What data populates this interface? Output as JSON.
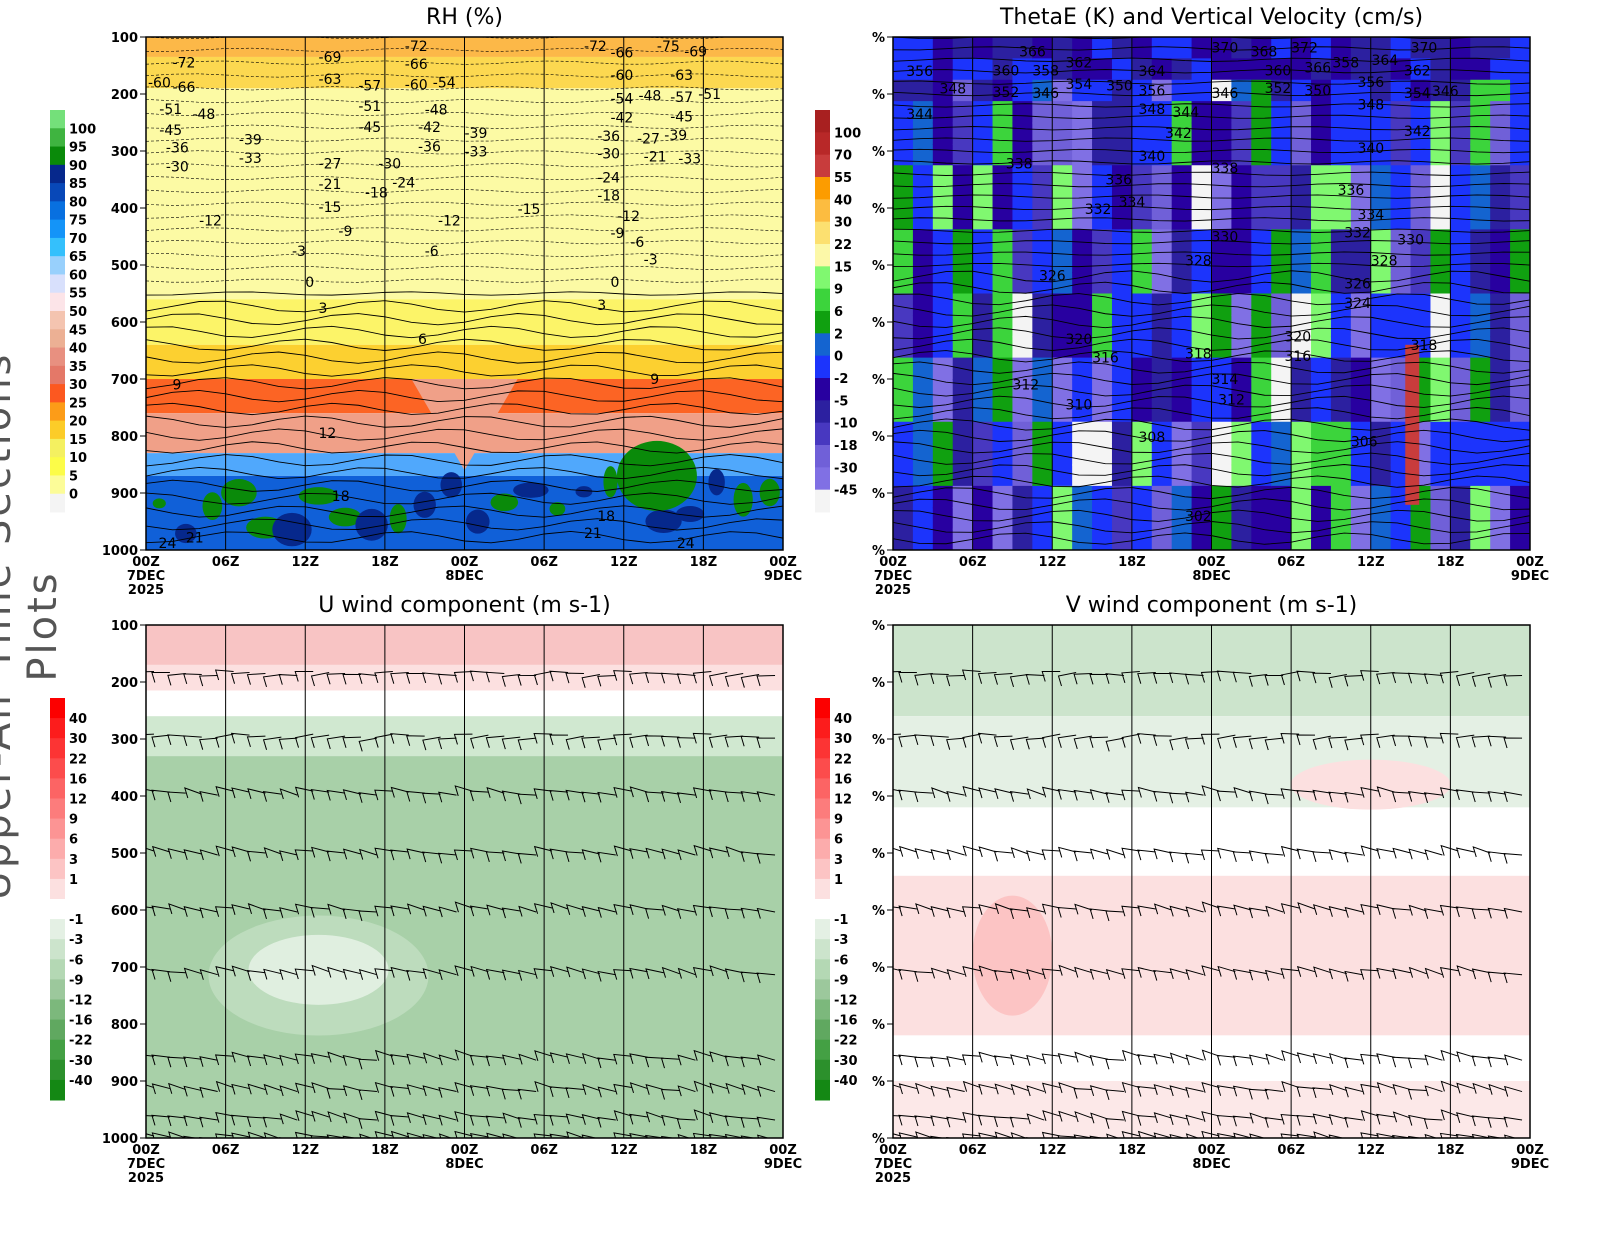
{
  "side_title": "Upper-Air Time Sections Plots",
  "x_ticks": [
    {
      "hour": 0,
      "label": "00Z",
      "date": "7DEC",
      "year": "2025"
    },
    {
      "hour": 6,
      "label": "06Z"
    },
    {
      "hour": 12,
      "label": "12Z"
    },
    {
      "hour": 18,
      "label": "18Z"
    },
    {
      "hour": 24,
      "label": "00Z",
      "date": "8DEC"
    },
    {
      "hour": 30,
      "label": "06Z"
    },
    {
      "hour": 36,
      "label": "12Z"
    },
    {
      "hour": 42,
      "label": "18Z"
    },
    {
      "hour": 48,
      "label": "00Z",
      "date": "9DEC"
    }
  ],
  "chart_data": [
    {
      "id": "rh",
      "type": "heatmap",
      "title": "RH (%)",
      "xlim": [
        0,
        48
      ],
      "ylim": [
        100,
        1000
      ],
      "ylabel_ticks": [
        "100",
        "200",
        "300",
        "400",
        "500",
        "600",
        "700",
        "800",
        "900",
        "1000"
      ],
      "colorbar": {
        "labels": [
          "100",
          "95",
          "90",
          "85",
          "80",
          "75",
          "70",
          "65",
          "60",
          "55",
          "50",
          "45",
          "40",
          "35",
          "30",
          "25",
          "20",
          "15",
          "10",
          "5",
          "0"
        ],
        "colors": [
          "#74e07a",
          "#3fb440",
          "#0a8a0a",
          "#06288c",
          "#0848b8",
          "#0870e0",
          "#1494f8",
          "#34c0fc",
          "#98d0fc",
          "#d8e0fc",
          "#fce4e8",
          "#f4c4b0",
          "#ecb094",
          "#e89080",
          "#e47868",
          "#fc5820",
          "#fc9c18",
          "#fccc28",
          "#f4f060",
          "#fcfc48",
          "#fcfc98",
          "#f4f4f4"
        ]
      },
      "bands": [
        [
          100,
          135,
          "#fcb848"
        ],
        [
          135,
          190,
          "#fcd850"
        ],
        [
          190,
          560,
          "#fcfaa4"
        ],
        [
          560,
          640,
          "#fcf468"
        ],
        [
          640,
          700,
          "#fcd030"
        ],
        [
          700,
          760,
          "#fc6424"
        ],
        [
          760,
          830,
          "#f0a088"
        ],
        [
          830,
          870,
          "#50a8fc"
        ],
        [
          870,
          1000,
          "#1060d8"
        ]
      ],
      "contour_labels": [
        [
          2,
          145,
          "-72"
        ],
        [
          2,
          160,
          "-66"
        ],
        [
          1,
          180,
          "-60"
        ],
        [
          1,
          212,
          "-51"
        ],
        [
          1,
          235,
          "-45"
        ],
        [
          1.5,
          280,
          "-36"
        ],
        [
          1.5,
          313,
          "-30"
        ],
        [
          3.5,
          235,
          "-48"
        ],
        [
          7,
          280,
          "-39"
        ],
        [
          7,
          298,
          "-33"
        ],
        [
          13,
          135,
          "-69"
        ],
        [
          13,
          160,
          "-63"
        ],
        [
          16,
          185,
          "-57"
        ],
        [
          16,
          207,
          "-51"
        ],
        [
          16,
          230,
          "-45"
        ],
        [
          13,
          322,
          "-27"
        ],
        [
          13,
          358,
          "-21"
        ],
        [
          13,
          398,
          "-15"
        ],
        [
          16.5,
          373,
          "-18"
        ],
        [
          17.5,
          322,
          "-30"
        ],
        [
          17.5,
          355,
          "-24"
        ],
        [
          14.5,
          440,
          "-9"
        ],
        [
          19.5,
          110,
          "-72"
        ],
        [
          19.5,
          133,
          "-66"
        ],
        [
          19.5,
          155,
          "-60"
        ],
        [
          19.5,
          180,
          "-54"
        ],
        [
          21,
          227,
          "-48"
        ],
        [
          20.5,
          258,
          "-42"
        ],
        [
          20.5,
          278,
          "-36"
        ],
        [
          24,
          268,
          "-39"
        ],
        [
          24,
          287,
          "-33"
        ],
        [
          21,
          475,
          "-6"
        ],
        [
          22,
          422,
          "-12"
        ],
        [
          4,
          422,
          "-12"
        ],
        [
          11,
          475,
          "-3"
        ],
        [
          12,
          530,
          "0"
        ],
        [
          13,
          575,
          "3"
        ],
        [
          20.5,
          630,
          "6"
        ],
        [
          2,
          710,
          "9"
        ],
        [
          13,
          795,
          "12"
        ],
        [
          14,
          905,
          "18"
        ],
        [
          3,
          978,
          "21"
        ],
        [
          2,
          1007,
          "24"
        ],
        [
          28,
          402,
          "-15"
        ],
        [
          33,
          105,
          "-72"
        ],
        [
          35,
          127,
          "-66"
        ],
        [
          35,
          153,
          "-60"
        ],
        [
          35,
          180,
          "-54"
        ],
        [
          35,
          203,
          "-48"
        ],
        [
          35,
          227,
          "-42"
        ],
        [
          34,
          260,
          "-36"
        ],
        [
          34,
          290,
          "-30"
        ],
        [
          37,
          278,
          "-27"
        ],
        [
          37.5,
          310,
          "-21"
        ],
        [
          34,
          318,
          "-24"
        ],
        [
          34,
          350,
          "-18"
        ],
        [
          35.5,
          400,
          "-12"
        ],
        [
          35,
          430,
          "-9"
        ],
        [
          36.5,
          460,
          "-6"
        ],
        [
          37.5,
          490,
          "-3"
        ],
        [
          35,
          530,
          "0"
        ],
        [
          34,
          570,
          "3"
        ],
        [
          38,
          700,
          "9"
        ],
        [
          34,
          940,
          "18"
        ],
        [
          33,
          970,
          "21"
        ],
        [
          40,
          998,
          "24"
        ],
        [
          38.5,
          100,
          "-75"
        ],
        [
          39.5,
          125,
          "-69"
        ],
        [
          39.5,
          153,
          "-63"
        ],
        [
          39.5,
          177,
          "-57"
        ],
        [
          39.5,
          200,
          "-51"
        ],
        [
          39.5,
          225,
          "-45"
        ],
        [
          38,
          258,
          "-39"
        ],
        [
          38,
          285,
          "-33"
        ]
      ]
    },
    {
      "id": "thetae",
      "type": "heatmap",
      "title": "ThetaE (K) and Vertical Velocity (cm/s)",
      "xlim": [
        0,
        48
      ],
      "ylim": [
        100,
        1000
      ],
      "ylabel_ticks": [
        "%",
        "%",
        "%",
        "%",
        "%",
        "%",
        "%",
        "%",
        "%",
        "%"
      ],
      "colorbar": {
        "labels": [
          "100",
          "70",
          "55",
          "40",
          "30",
          "22",
          "15",
          "9",
          "6",
          "2",
          "0",
          "-2",
          "-5",
          "-10",
          "-18",
          "-30",
          "-45"
        ],
        "colors": [
          "#a82020",
          "#b82828",
          "#c83c3c",
          "#fc9c00",
          "#fcbc40",
          "#fce070",
          "#fcf8a8",
          "#80f870",
          "#3cd43c",
          "#10a010",
          "#1464d0",
          "#1c34fc",
          "#2800a0",
          "#2c20a0",
          "#4838c0",
          "#7060d8",
          "#8070e4",
          "#f4f4f4"
        ]
      },
      "contour_labels": [
        [
          30,
          118,
          "372"
        ],
        [
          24,
          118,
          "370"
        ],
        [
          39,
          118,
          "370"
        ],
        [
          9.5,
          125,
          "366"
        ],
        [
          28,
          125,
          "368"
        ],
        [
          31,
          125,
          "366"
        ],
        [
          7.5,
          145,
          "360"
        ],
        [
          10.5,
          145,
          "358"
        ],
        [
          13,
          145,
          "362"
        ],
        [
          28,
          145,
          "360"
        ],
        [
          31,
          145,
          "358"
        ],
        [
          35,
          140,
          "364"
        ],
        [
          38.5,
          145,
          "362"
        ],
        [
          1,
          160,
          "356"
        ],
        [
          7.5,
          168,
          "352"
        ],
        [
          13,
          168,
          "354"
        ],
        [
          18.5,
          160,
          "364"
        ],
        [
          18.5,
          180,
          "356"
        ],
        [
          28,
          175,
          "352"
        ],
        [
          31,
          180,
          "350"
        ],
        [
          35,
          165,
          "356"
        ],
        [
          38.5,
          170,
          "354"
        ],
        [
          3.5,
          190,
          "348"
        ],
        [
          10.5,
          198,
          "346"
        ],
        [
          15,
          185,
          "350"
        ],
        [
          18.5,
          198,
          "348"
        ],
        [
          24,
          198,
          "346"
        ],
        [
          35,
          190,
          "348"
        ],
        [
          38.5,
          195,
          "346"
        ],
        [
          1,
          235,
          "344"
        ],
        [
          20,
          232,
          "344"
        ],
        [
          20.5,
          268,
          "342"
        ],
        [
          38.5,
          265,
          "342"
        ],
        [
          18.5,
          295,
          "340"
        ],
        [
          35,
          295,
          "340"
        ],
        [
          8.5,
          322,
          "338"
        ],
        [
          24,
          330,
          "338"
        ],
        [
          16,
          350,
          "336"
        ],
        [
          17,
          375,
          "334"
        ],
        [
          33.5,
          368,
          "336"
        ],
        [
          35,
          397,
          "334"
        ],
        [
          15.5,
          402,
          "332"
        ],
        [
          34,
          415,
          "332"
        ],
        [
          24,
          450,
          "330"
        ],
        [
          38,
          455,
          "330"
        ],
        [
          22,
          478,
          "328"
        ],
        [
          36,
          478,
          "328"
        ],
        [
          11,
          518,
          "326"
        ],
        [
          34,
          518,
          "326"
        ],
        [
          34,
          553,
          "324"
        ],
        [
          13,
          630,
          "320"
        ],
        [
          29.5,
          625,
          "320"
        ],
        [
          15,
          662,
          "316"
        ],
        [
          22,
          655,
          "318"
        ],
        [
          29.5,
          660,
          "316"
        ],
        [
          39,
          640,
          "318"
        ],
        [
          9,
          710,
          "312"
        ],
        [
          24,
          700,
          "314"
        ],
        [
          24.5,
          722,
          "312"
        ],
        [
          13,
          745,
          "310"
        ],
        [
          18.5,
          802,
          "308"
        ],
        [
          34.5,
          810,
          "306"
        ],
        [
          22,
          940,
          "302"
        ]
      ]
    },
    {
      "id": "u",
      "type": "heatmap",
      "title": "U wind component (m s-1)",
      "xlim": [
        0,
        48
      ],
      "ylim": [
        100,
        1000
      ],
      "ylabel_ticks": [
        "100",
        "200",
        "300",
        "400",
        "500",
        "600",
        "700",
        "800",
        "900",
        "1000"
      ],
      "colorbar": {
        "labels": [
          "40",
          "30",
          "22",
          "16",
          "12",
          "9",
          "6",
          "3",
          "1",
          "-1",
          "-3",
          "-6",
          "-9",
          "-12",
          "-16",
          "-22",
          "-30",
          "-40"
        ],
        "colors": [
          "#fc0000",
          "#fc1c1c",
          "#fc3434",
          "#fc4c4c",
          "#fc6464",
          "#fc7c7c",
          "#fc9494",
          "#fcacac",
          "#fcc4c4",
          "#fce0e0",
          "#ffffff",
          "#e4f0e4",
          "#cce4cc",
          "#b4d8b4",
          "#9cc89c",
          "#7cb87c",
          "#60a860",
          "#44a044",
          "#2c902c",
          "#148814"
        ]
      },
      "bands": [
        [
          100,
          170,
          "#f8c4c4"
        ],
        [
          170,
          215,
          "#fce0e0"
        ],
        [
          215,
          260,
          "#ffffff"
        ],
        [
          260,
          330,
          "#d0e8d0"
        ],
        [
          330,
          1000,
          "#a8d0a8"
        ]
      ]
    },
    {
      "id": "v",
      "type": "heatmap",
      "title": "V wind component (m s-1)",
      "xlim": [
        0,
        48
      ],
      "ylim": [
        100,
        1000
      ],
      "ylabel_ticks": [
        "%",
        "%",
        "%",
        "%",
        "%",
        "%",
        "%",
        "%",
        "%",
        "%"
      ],
      "colorbar": {
        "labels": [
          "40",
          "30",
          "22",
          "16",
          "12",
          "9",
          "6",
          "3",
          "1",
          "-1",
          "-3",
          "-6",
          "-9",
          "-12",
          "-16",
          "-22",
          "-30",
          "-40"
        ],
        "colors": [
          "#fc0000",
          "#fc1c1c",
          "#fc3434",
          "#fc4c4c",
          "#fc6464",
          "#fc7c7c",
          "#fc9494",
          "#fcacac",
          "#fcc4c4",
          "#fce0e0",
          "#ffffff",
          "#e4f0e4",
          "#cce4cc",
          "#b4d8b4",
          "#9cc89c",
          "#7cb87c",
          "#60a860",
          "#44a044",
          "#2c902c",
          "#148814"
        ]
      },
      "bands": [
        [
          100,
          260,
          "#cce4cc"
        ],
        [
          260,
          420,
          "#e4f0e4"
        ],
        [
          420,
          540,
          "#ffffff"
        ],
        [
          540,
          820,
          "#fce0e0"
        ],
        [
          820,
          900,
          "#ffffff"
        ],
        [
          900,
          1000,
          "#fce8e8"
        ]
      ]
    }
  ]
}
